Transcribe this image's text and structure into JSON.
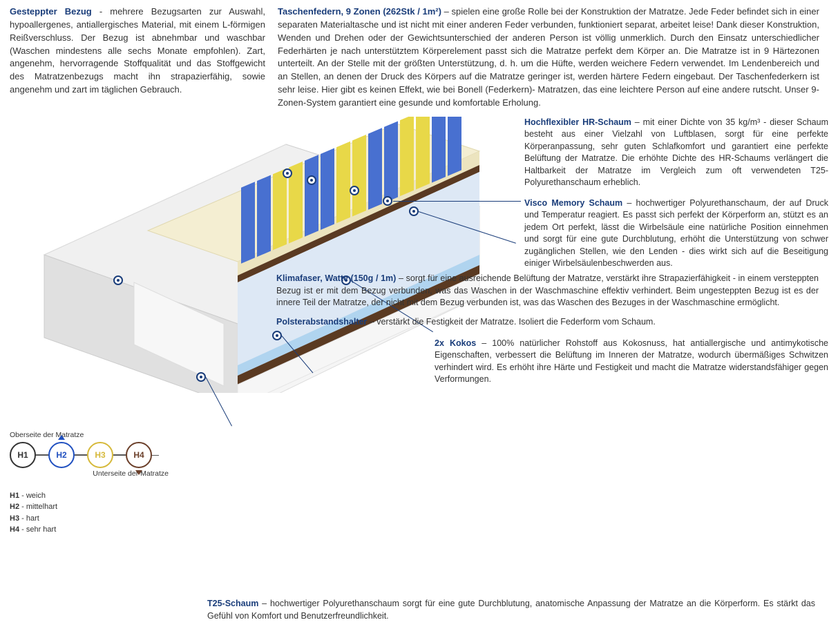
{
  "colors": {
    "heading": "#1a3d7a",
    "text": "#333333",
    "marker_border": "#1a3d7a",
    "h1_border": "#333333",
    "h2_border": "#2050c0",
    "h3_border": "#d6b93a",
    "h4_border": "#6b3f2a",
    "spring_blue": "#4870d0",
    "spring_yellow": "#e8d848",
    "foam_cream": "#f2eccf",
    "foam_blue": "#b0d4ef",
    "coco": "#5a3a22",
    "cover": "#e9e9e9"
  },
  "top_left": {
    "title": "Gesteppter Bezug",
    "dash": " - ",
    "text": "mehrere Bezugsarten zur Auswahl, hypoallergenes, antiallergisches Material, mit einem L-förmigen Reißverschluss. Der Bezug ist abnehmbar und waschbar (Waschen mindestens alle sechs Monate empfohlen). Zart, angenehm, hervorragende Stoffqualität und das Stoffgewicht des Matratzenbezugs macht ihn strapazierfähig, sowie angenehm und zart im täglichen Gebrauch."
  },
  "top_right": {
    "title": "Taschenfedern, 9 Zonen (262Stk / 1m²)",
    "dash": " – ",
    "text": "spielen eine große Rolle bei der Konstruktion der Matratze. Jede Feder befindet sich in einer separaten Materialtasche und ist nicht mit einer anderen Feder verbunden, funktioniert separat, arbeitet leise! Dank dieser Konstruktion, Wenden und Drehen oder der Gewichtsunterschied der anderen Person ist völlig unmerklich. Durch den Einsatz unterschiedlicher Federhärten je nach unterstütztem Körperelement passt sich die Matratze perfekt dem Körper an. Die Matratze ist in 9 Härtezonen unterteilt. An der Stelle mit der größten Unterstützung, d. h. um die Hüfte, werden weichere Federn verwendet. Im Lendenbereich und an Stellen, an denen der Druck des Körpers auf die Matratze geringer ist, werden härtere Federn eingebaut. Der Taschenfederkern ist sehr leise. Hier gibt es keinen Effekt, wie bei Bonell (Federkern)- Matratzen, das eine leichtere Person auf eine andere rutscht. Unser 9-Zonen-System garantiert eine gesunde und komfortable Erholung."
  },
  "side": [
    {
      "title": "Hochflexibler HR-Schaum",
      "dash": " – ",
      "text": "mit einer Dichte von 35 kg/m³ - dieser Schaum besteht aus einer Vielzahl von Luftblasen, sorgt für eine perfekte Körperanpassung, sehr guten Schlafkomfort und garantiert eine perfekte Belüftung der Matratze. Die erhöhte Dichte des HR-Schaums verlängert die Haltbarkeit der Matratze im Vergleich zum oft verwendeten T25-Polyurethanschaum erheblich."
    },
    {
      "title": "Visco Memory Schaum",
      "dash": " – ",
      "text": "hochwertiger Polyurethanschaum, der auf Druck und Temperatur reagiert. Es passt sich perfekt der Körperform an, stützt es an jedem Ort perfekt, lässt die Wirbelsäule eine natürliche Position einnehmen und sorgt für eine gute Durchblutung, erhöht die Unterstützung von schwer zugänglichen Stellen, wie den Lenden - dies wirkt sich auf die Beseitigung einiger Wirbelsäulenbeschwerden aus."
    },
    {
      "title": "2x Kokos",
      "dash": " – ",
      "text": "100% natürlicher Rohstoff aus Kokosnuss, hat antiallergische und antimykotische Eigenschaften, verbessert die Belüftung im Inneren der Matratze, wodurch übermäßiges Schwitzen verhindert wird. Es erhöht ihre Härte und Festigkeit und macht die Matratze widerstandsfähiger gegen Verformungen."
    }
  ],
  "wide": [
    {
      "title": "Klimafaser, Watte (150g / 1m)",
      "dash": " – ",
      "text": "sorgt für eine ausreichende Belüftung der Matratze, verstärkt ihre Strapazierfähigkeit - in einem versteppten Bezug ist er mit dem Bezug verbunden, was das Waschen in der Waschmaschine effektiv verhindert. Beim ungesteppten Bezug ist es der innere Teil der Matratze, der nicht mit dem Bezug verbunden ist, was das Waschen des Bezuges in der Waschmaschine ermöglicht."
    },
    {
      "title": "Polsterabstandshalter",
      "dash": " – ",
      "text": "verstärkt die Festigkeit der Matratze. Isoliert die Federform vom Schaum."
    }
  ],
  "bottom": {
    "title": "T25-Schaum",
    "dash": " – ",
    "text": "hochwertiger Polyurethanschaum sorgt für eine gute Durchblutung, anatomische Anpassung der Matratze an die Körperform. Es stärkt das Gefühl von Komfort und Benutzerfreundlichkeit."
  },
  "hardness": {
    "top_label": "Oberseite der Matratze",
    "bottom_label": "Unterseite der Matratze",
    "items": [
      {
        "code": "H1",
        "color": "#333333"
      },
      {
        "code": "H2",
        "color": "#2050c0"
      },
      {
        "code": "H3",
        "color": "#d6b93a"
      },
      {
        "code": "H4",
        "color": "#6b3f2a"
      }
    ],
    "legend": [
      {
        "code": "H1",
        "label": " - weich"
      },
      {
        "code": "H2",
        "label": " - mittelhart"
      },
      {
        "code": "H3",
        "label": " - hart"
      },
      {
        "code": "H4",
        "label": " - sehr hart"
      }
    ],
    "arrow_top_index": 1,
    "arrow_bottom_index": 3
  }
}
